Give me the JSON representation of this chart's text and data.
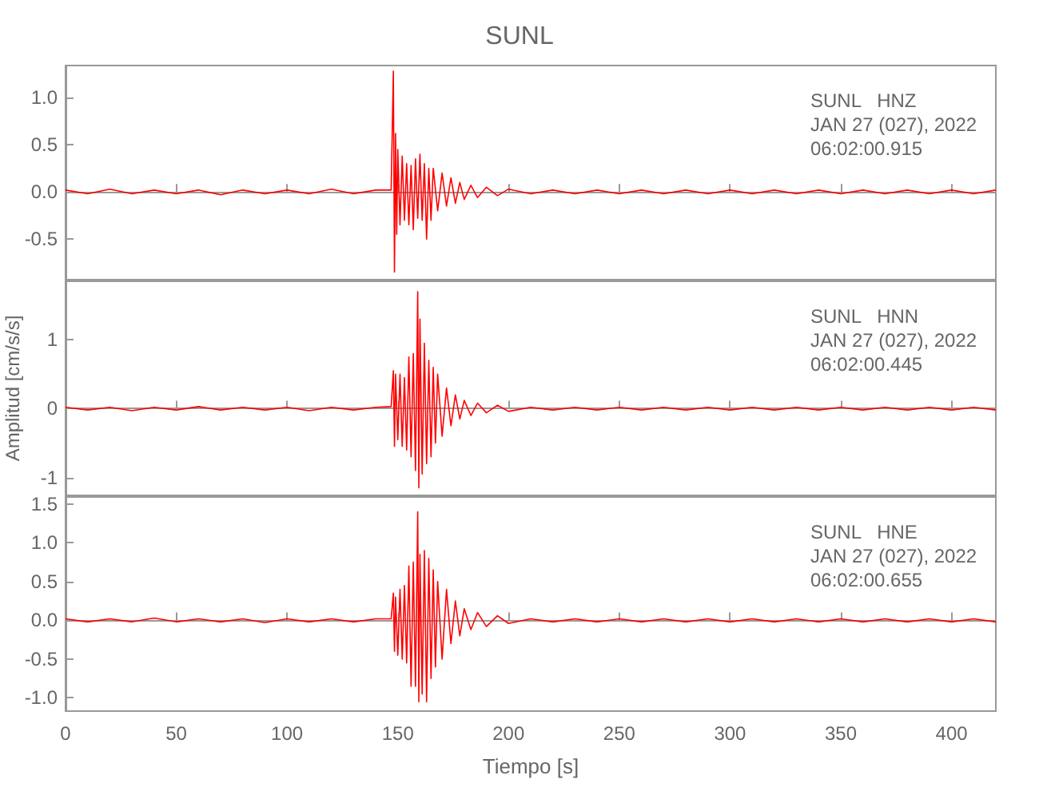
{
  "chart_data": [
    {
      "type": "line",
      "title": "SUNL",
      "annotations": [
        "SUNL   HNZ",
        "JAN 27 (027), 2022",
        "06:02:00.915"
      ],
      "tick_labels": "y",
      "xlim": [
        0,
        420
      ],
      "xticks": [
        0,
        50,
        100,
        150,
        200,
        250,
        300,
        350,
        400
      ],
      "ylim": [
        -0.93,
        1.34
      ],
      "yticks": [
        {
          "value": -0.5,
          "label": "-0.5"
        },
        {
          "value": 0,
          "label": "0.0"
        },
        {
          "value": 0.5,
          "label": "0.5"
        },
        {
          "value": 1,
          "label": "1.0"
        }
      ],
      "series": [
        {
          "color": "#ff0000",
          "x": [
            0,
            10,
            20,
            30,
            40,
            50,
            60,
            70,
            80,
            90,
            100,
            110,
            120,
            130,
            140,
            147,
            148,
            148.5,
            149,
            149.5,
            150,
            151,
            152,
            153,
            154,
            155,
            156,
            157,
            158,
            159,
            160,
            161,
            162,
            163,
            164,
            165,
            166,
            168,
            170,
            172,
            174,
            176,
            178,
            180,
            183,
            186,
            190,
            195,
            200,
            210,
            220,
            230,
            240,
            250,
            260,
            270,
            280,
            290,
            300,
            310,
            320,
            330,
            340,
            350,
            360,
            370,
            380,
            390,
            400,
            410,
            420
          ],
          "values": [
            0.02,
            -0.02,
            0.03,
            -0.02,
            0.02,
            -0.02,
            0.02,
            -0.03,
            0.02,
            -0.02,
            0.02,
            -0.02,
            0.03,
            -0.02,
            0.02,
            0.02,
            1.28,
            -0.85,
            0.62,
            -0.45,
            0.45,
            -0.35,
            0.38,
            -0.3,
            0.3,
            -0.35,
            0.28,
            -0.4,
            0.35,
            -0.28,
            0.4,
            -0.3,
            0.3,
            -0.5,
            0.25,
            -0.3,
            0.25,
            -0.2,
            0.2,
            -0.15,
            0.15,
            -0.12,
            0.1,
            -0.08,
            0.07,
            -0.06,
            0.05,
            -0.04,
            0.03,
            -0.02,
            0.02,
            -0.02,
            0.02,
            -0.02,
            0.02,
            -0.02,
            0.02,
            -0.02,
            0.02,
            -0.02,
            0.02,
            -0.02,
            0.02,
            -0.02,
            0.02,
            -0.02,
            0.02,
            -0.02,
            0.02,
            -0.02,
            0.02
          ]
        }
      ]
    },
    {
      "type": "line",
      "ylabel": "Amplitud [cm/s/s]",
      "annotations": [
        "SUNL   HNN",
        "JAN 27 (027), 2022",
        "06:02:00.445"
      ],
      "tick_labels": "y",
      "xlim": [
        0,
        420
      ],
      "xticks": [
        0,
        50,
        100,
        150,
        200,
        250,
        300,
        350,
        400
      ],
      "ylim": [
        -1.26,
        1.85
      ],
      "yticks": [
        -1,
        0,
        1
      ],
      "series": [
        {
          "color": "#ff0000",
          "x": [
            0,
            10,
            20,
            30,
            40,
            50,
            60,
            70,
            80,
            90,
            100,
            110,
            120,
            130,
            140,
            147,
            148,
            148.5,
            149,
            150,
            151,
            152,
            153,
            154,
            155,
            156,
            157,
            158,
            159,
            159.5,
            160,
            161,
            162,
            163,
            164,
            165,
            166,
            167,
            168,
            170,
            172,
            174,
            176,
            178,
            180,
            183,
            186,
            190,
            195,
            200,
            210,
            220,
            230,
            240,
            250,
            260,
            270,
            280,
            290,
            300,
            310,
            320,
            330,
            340,
            350,
            360,
            370,
            380,
            390,
            400,
            410,
            420
          ],
          "values": [
            0.02,
            -0.02,
            0.02,
            -0.03,
            0.02,
            -0.02,
            0.03,
            -0.02,
            0.02,
            -0.02,
            0.02,
            -0.03,
            0.02,
            -0.02,
            0.02,
            0.03,
            0.55,
            -0.55,
            0.5,
            -0.45,
            0.5,
            -0.55,
            0.45,
            -0.6,
            0.75,
            -0.7,
            0.8,
            -0.9,
            1.7,
            -1.15,
            1.3,
            -0.95,
            0.95,
            -0.8,
            0.7,
            -0.7,
            0.6,
            -0.5,
            0.5,
            -0.4,
            0.3,
            -0.25,
            0.2,
            -0.15,
            0.12,
            -0.1,
            0.08,
            -0.06,
            0.05,
            -0.04,
            0.02,
            -0.02,
            0.02,
            -0.02,
            0.02,
            -0.02,
            0.02,
            -0.02,
            0.02,
            -0.02,
            0.02,
            -0.02,
            0.02,
            -0.02,
            0.02,
            -0.02,
            0.02,
            -0.02,
            0.02,
            -0.02,
            0.02,
            -0.02
          ]
        }
      ]
    },
    {
      "type": "line",
      "xlabel": "Tiempo [s]",
      "annotations": [
        "SUNL   HNE",
        "JAN 27 (027), 2022",
        "06:02:00.655"
      ],
      "xlim": [
        0,
        420
      ],
      "xticks": [
        0,
        50,
        100,
        150,
        200,
        250,
        300,
        350,
        400
      ],
      "ylim": [
        -1.17,
        1.59
      ],
      "yticks": [
        {
          "value": -1,
          "label": "-1.0"
        },
        {
          "value": -0.5,
          "label": "-0.5"
        },
        {
          "value": 0,
          "label": "0.0"
        },
        {
          "value": 0.5,
          "label": "0.5"
        },
        {
          "value": 1,
          "label": "1.0"
        },
        {
          "value": 1.5,
          "label": "1.5"
        }
      ],
      "series": [
        {
          "color": "#ff0000",
          "x": [
            0,
            10,
            20,
            30,
            40,
            50,
            60,
            70,
            80,
            90,
            100,
            110,
            120,
            130,
            140,
            147,
            148,
            148.5,
            149,
            150,
            151,
            152,
            153,
            154,
            155,
            156,
            157,
            158,
            159,
            159.5,
            160,
            161,
            162,
            163,
            164,
            165,
            166,
            167,
            168,
            170,
            172,
            174,
            176,
            178,
            180,
            183,
            186,
            190,
            195,
            200,
            210,
            220,
            230,
            240,
            250,
            260,
            270,
            280,
            290,
            300,
            310,
            320,
            330,
            340,
            350,
            360,
            370,
            380,
            390,
            400,
            410,
            420
          ],
          "values": [
            0.02,
            -0.02,
            0.02,
            -0.02,
            0.03,
            -0.02,
            0.02,
            -0.02,
            0.02,
            -0.03,
            0.02,
            -0.02,
            0.02,
            -0.02,
            0.02,
            0.02,
            0.35,
            -0.4,
            0.3,
            -0.45,
            0.4,
            -0.5,
            0.45,
            -0.55,
            0.7,
            -0.85,
            0.75,
            -0.85,
            1.4,
            -1.05,
            0.85,
            -0.95,
            0.9,
            -1.05,
            0.8,
            -0.75,
            0.65,
            -0.6,
            0.5,
            -0.5,
            0.4,
            -0.3,
            0.25,
            -0.2,
            0.15,
            -0.12,
            0.1,
            -0.08,
            0.06,
            -0.04,
            0.02,
            -0.02,
            0.02,
            -0.02,
            0.02,
            -0.02,
            0.02,
            -0.02,
            0.02,
            -0.02,
            0.02,
            -0.02,
            0.02,
            -0.02,
            0.02,
            -0.02,
            0.02,
            -0.02,
            0.02,
            -0.02,
            0.02,
            -0.02
          ]
        }
      ]
    }
  ]
}
